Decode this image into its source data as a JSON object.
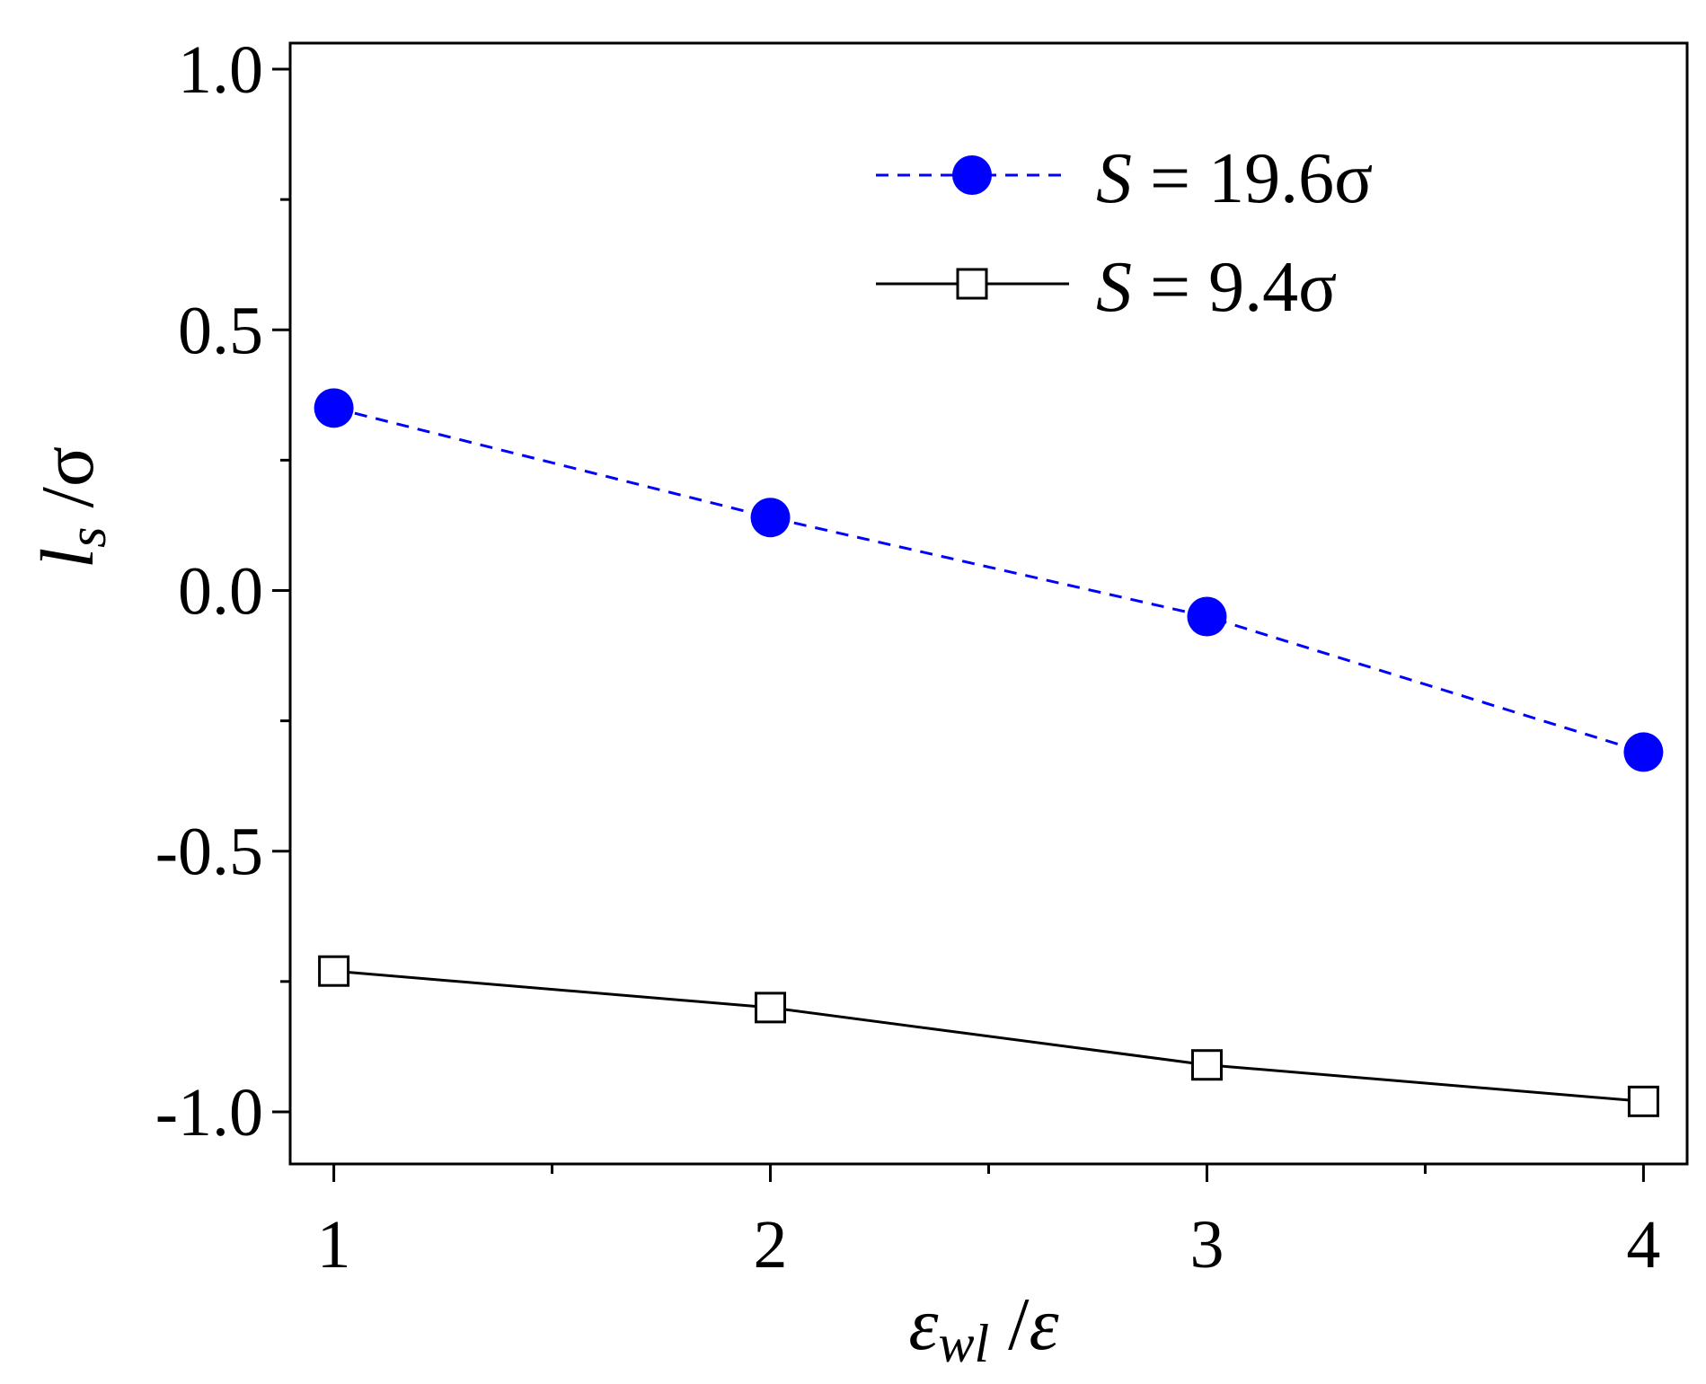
{
  "chart_data": {
    "type": "line",
    "x": [
      1,
      2,
      3,
      4
    ],
    "series": [
      {
        "name": "S = 19.6σ",
        "name_parts": {
          "symbol": "S",
          "rest": " = 19.6σ"
        },
        "values": [
          0.35,
          0.14,
          -0.05,
          -0.31
        ],
        "color": "#0000ff",
        "line_style": "dashed",
        "marker": "filled-circle"
      },
      {
        "name": "S = 9.4σ",
        "name_parts": {
          "symbol": "S",
          "rest": " = 9.4σ"
        },
        "values": [
          -0.73,
          -0.8,
          -0.91,
          -0.98
        ],
        "color": "#000000",
        "line_style": "solid",
        "marker": "open-square"
      }
    ],
    "xlabel": "εwl /ε",
    "xlabel_parts": {
      "main": "ε",
      "sub": "wl",
      "rest": " /",
      "end": "ε"
    },
    "ylabel": "ls /σ",
    "ylabel_parts": {
      "main": "l",
      "sub": "s",
      "rest": " /σ"
    },
    "xlim": [
      0.9,
      4.1
    ],
    "ylim": [
      -1.1,
      1.05
    ],
    "x_ticks": [
      1,
      2,
      3,
      4
    ],
    "x_tick_labels": [
      "1",
      "2",
      "3",
      "4"
    ],
    "x_minor_ticks": [
      1.5,
      2.5,
      3.5
    ],
    "y_ticks": [
      1.0,
      0.5,
      0.0,
      -0.5,
      -1.0
    ],
    "y_tick_labels": [
      "1.0",
      "0.5",
      "0.0",
      "-0.5",
      "-1.0"
    ],
    "y_minor_ticks": [
      0.75,
      0.25,
      -0.25,
      -0.75
    ],
    "grid": false,
    "legend_position": "top-right"
  }
}
